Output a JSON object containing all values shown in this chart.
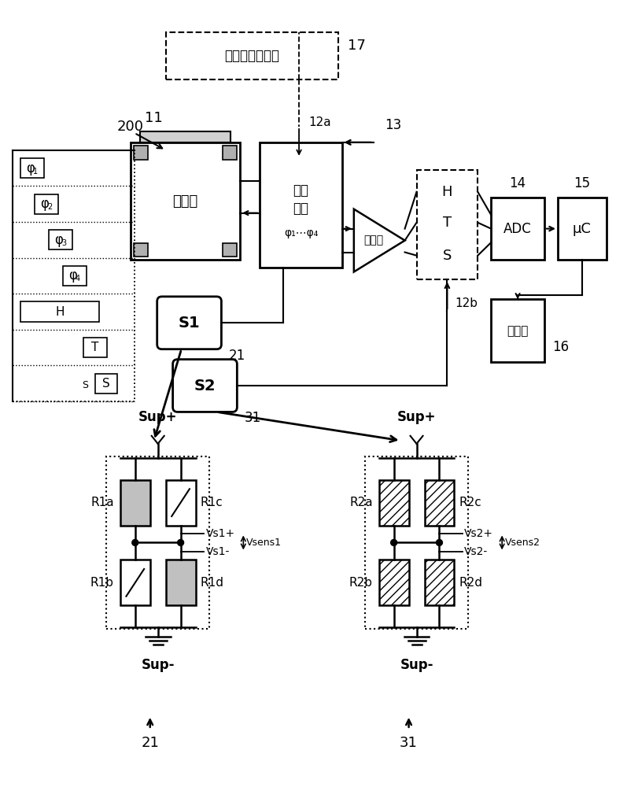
{
  "bg_color": "#ffffff",
  "fig_width": 7.97,
  "fig_height": 10.0,
  "dpi": 100,
  "top_box_label": "恒定电压生成器",
  "hall_label": "霎尔板",
  "switch_line1": "切换",
  "switch_line2": "装置",
  "switch_line3": "φ₁⋯φ₄",
  "amp_label": "放大器",
  "adc_label": "ADC",
  "uc_label": "μC",
  "mem_label": "储存器"
}
